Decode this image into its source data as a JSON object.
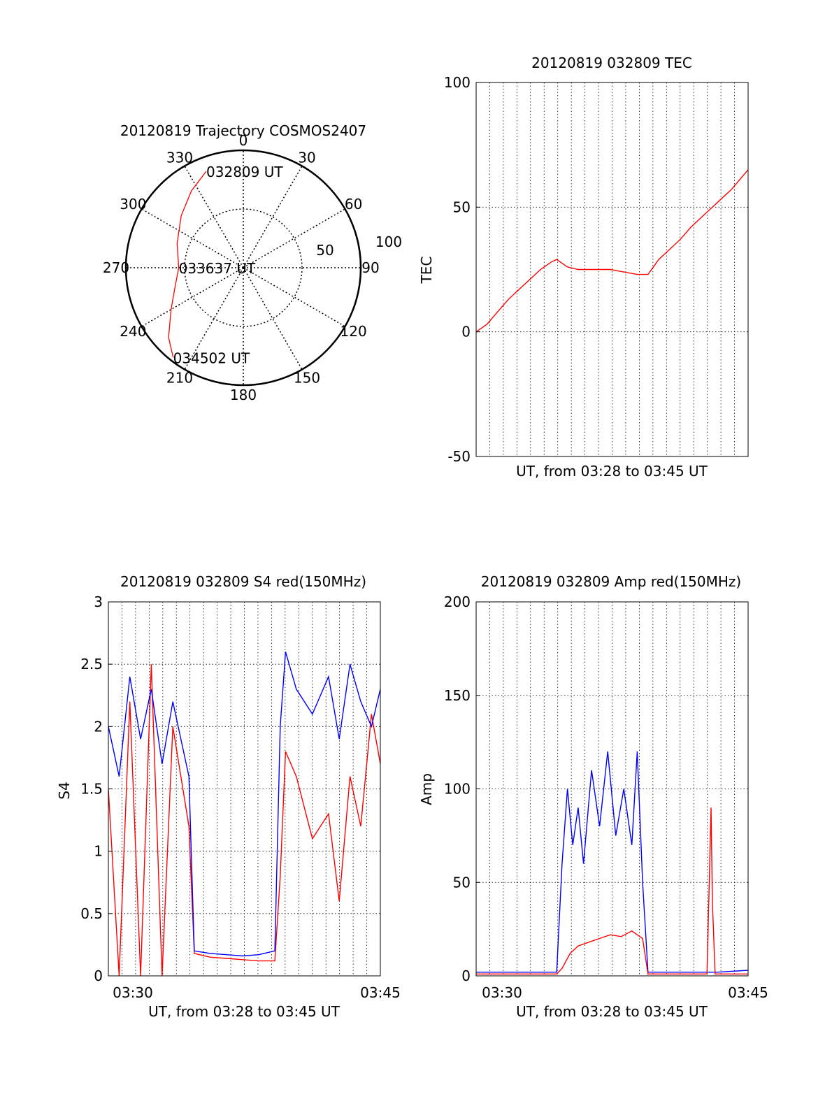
{
  "colors": {
    "red": "#ff0000",
    "blue": "#0000ff",
    "axis": "#000000",
    "grid": "#000000",
    "background": "#ffffff"
  },
  "chart_data": [
    {
      "type": "polar",
      "title": "20120819 Trajectory COSMOS2407",
      "azimuth_labels": [
        "0",
        "30",
        "60",
        "90",
        "120",
        "150",
        "180",
        "210",
        "240",
        "270",
        "300",
        "330"
      ],
      "radial_labels": [
        "50",
        "100"
      ],
      "radial_range": [
        0,
        100
      ],
      "grid": true,
      "series": [
        {
          "color": "#ff0000",
          "azimuth_deg": [
            339,
            326,
            310,
            290,
            270,
            255,
            240,
            227,
            218
          ],
          "radius": [
            88,
            79,
            69,
            60,
            55,
            60,
            71,
            87,
            97
          ]
        }
      ],
      "annotations": [
        {
          "text": "032809 UT",
          "azimuth_deg": 339,
          "radius": 88
        },
        {
          "text": "033637 UT",
          "azimuth_deg": 270,
          "radius": 55
        },
        {
          "text": "034502 UT",
          "azimuth_deg": 218,
          "radius": 97
        }
      ]
    },
    {
      "type": "line",
      "title": "20120819 032809 TEC",
      "xlabel": "UT, from 03:28 to 03:45 UT",
      "ylabel": "TEC",
      "xlim": [
        0,
        1013
      ],
      "ylim": [
        -50,
        100
      ],
      "yticks": [
        -50,
        0,
        50,
        100
      ],
      "grid": true,
      "series": [
        {
          "color": "#ff0000",
          "x": [
            0,
            40,
            80,
            120,
            160,
            200,
            240,
            280,
            300,
            340,
            380,
            420,
            460,
            500,
            550,
            600,
            640,
            680,
            720,
            760,
            800,
            850,
            900,
            950,
            1013
          ],
          "y": [
            0,
            3,
            8,
            13,
            17,
            21,
            25,
            28,
            29,
            26,
            25,
            25,
            25,
            25,
            24,
            23,
            23,
            29,
            33,
            37,
            42,
            47,
            52,
            57,
            65
          ]
        }
      ]
    },
    {
      "type": "line",
      "title": "20120819 032809 S4 red(150MHz)",
      "xlabel": "UT, from 03:28 to 03:45 UT",
      "ylabel": "S4",
      "xticklabels": [
        "03:30",
        "03:45"
      ],
      "xlim": [
        0,
        1013
      ],
      "ylim": [
        0,
        3
      ],
      "yticks": [
        0,
        0.5,
        1,
        1.5,
        2,
        2.5,
        3
      ],
      "grid": true,
      "series": [
        {
          "color": "#ff0000",
          "x": [
            0,
            40,
            80,
            120,
            160,
            200,
            240,
            300,
            320,
            380,
            440,
            500,
            560,
            620,
            640,
            660,
            700,
            760,
            820,
            860,
            900,
            940,
            980,
            1013
          ],
          "y": [
            1.5,
            0,
            2.2,
            0,
            2.5,
            0,
            2.0,
            1.2,
            0.18,
            0.15,
            0.14,
            0.13,
            0.12,
            0.12,
            0.8,
            1.8,
            1.6,
            1.1,
            1.3,
            0.6,
            1.6,
            1.2,
            2.1,
            1.7
          ]
        },
        {
          "color": "#0000ff",
          "x": [
            0,
            40,
            80,
            120,
            160,
            200,
            240,
            300,
            320,
            380,
            440,
            500,
            560,
            620,
            640,
            660,
            700,
            760,
            820,
            860,
            900,
            940,
            980,
            1013
          ],
          "y": [
            2.0,
            1.6,
            2.4,
            1.9,
            2.3,
            1.7,
            2.2,
            1.6,
            0.2,
            0.18,
            0.17,
            0.16,
            0.17,
            0.2,
            2.0,
            2.6,
            2.3,
            2.1,
            2.4,
            1.9,
            2.5,
            2.2,
            2.0,
            2.3
          ]
        }
      ]
    },
    {
      "type": "line",
      "title": "20120819 032809 Amp red(150MHz)",
      "xlabel": "UT, from 03:28 to 03:45 UT",
      "ylabel": "Amp",
      "xticklabels": [
        "03:30",
        "03:45"
      ],
      "xlim": [
        0,
        1013
      ],
      "ylim": [
        0,
        200
      ],
      "yticks": [
        0,
        50,
        100,
        150,
        200
      ],
      "grid": true,
      "series": [
        {
          "color": "#ff0000",
          "x": [
            0,
            100,
            200,
            300,
            320,
            350,
            380,
            420,
            460,
            500,
            540,
            580,
            620,
            640,
            700,
            800,
            860,
            870,
            875,
            880,
            890,
            1013
          ],
          "y": [
            1,
            1,
            1,
            1,
            4,
            12,
            16,
            18,
            20,
            22,
            21,
            24,
            20,
            1,
            1,
            1,
            1,
            60,
            90,
            40,
            1,
            1
          ]
        },
        {
          "color": "#0000ff",
          "x": [
            0,
            100,
            200,
            300,
            320,
            340,
            360,
            380,
            400,
            430,
            460,
            490,
            520,
            550,
            580,
            600,
            620,
            640,
            700,
            800,
            900,
            1013
          ],
          "y": [
            2,
            2,
            2,
            2,
            60,
            100,
            70,
            90,
            60,
            110,
            80,
            120,
            75,
            100,
            70,
            120,
            50,
            2,
            2,
            2,
            2,
            3
          ]
        }
      ]
    }
  ]
}
